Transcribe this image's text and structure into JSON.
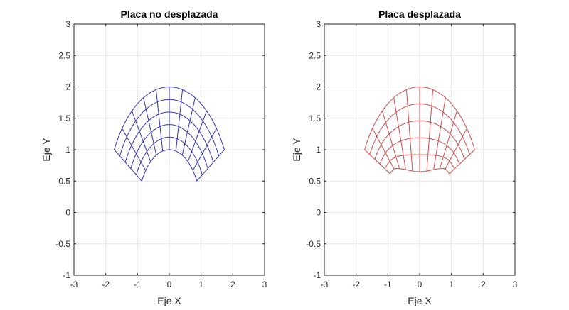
{
  "chart_data": [
    {
      "type": "line",
      "title": "Placa no desplazada",
      "xlabel": "Eje X",
      "ylabel": "Eje Y",
      "xlim": [
        -3,
        3
      ],
      "ylim": [
        -1,
        3
      ],
      "xticks": [
        "-3",
        "-2",
        "-1",
        "0",
        "1",
        "2",
        "3"
      ],
      "yticks": [
        "-1",
        "-0.5",
        "0",
        "0.5",
        "1",
        "1.5",
        "2",
        "2.5",
        "3"
      ],
      "grid": true,
      "series_color": "#3333b3",
      "mesh": {
        "shape": "annular-sector",
        "center": [
          0,
          0
        ],
        "radius_range": [
          1,
          2
        ],
        "angle_range_deg": [
          30,
          150
        ],
        "radial_divisions": 5,
        "angular_divisions": 10,
        "displaced": false
      }
    },
    {
      "type": "line",
      "title": "Placa desplazada",
      "xlabel": "Eje X",
      "ylabel": "Eje Y",
      "xlim": [
        -3,
        3
      ],
      "ylim": [
        -1,
        3
      ],
      "xticks": [
        "-3",
        "-2",
        "-1",
        "0",
        "1",
        "2",
        "3"
      ],
      "yticks": [
        "-1",
        "-0.5",
        "0",
        "0.5",
        "1",
        "1.5",
        "2",
        "2.5",
        "3"
      ],
      "grid": true,
      "series_color": "#cc4d4d",
      "mesh": {
        "shape": "annular-sector",
        "center": [
          0,
          0
        ],
        "radius_range": [
          1,
          2
        ],
        "angle_range_deg": [
          30,
          150
        ],
        "radial_divisions": 5,
        "angular_divisions": 10,
        "displaced": true,
        "inner_edge_points": [
          [
            -1.73,
            0.9
          ],
          [
            -1.1,
            0.55
          ],
          [
            -0.75,
            0.7
          ],
          [
            0,
            0.65
          ],
          [
            0.75,
            0.7
          ],
          [
            1.1,
            0.55
          ],
          [
            1.73,
            0.9
          ]
        ]
      }
    }
  ]
}
